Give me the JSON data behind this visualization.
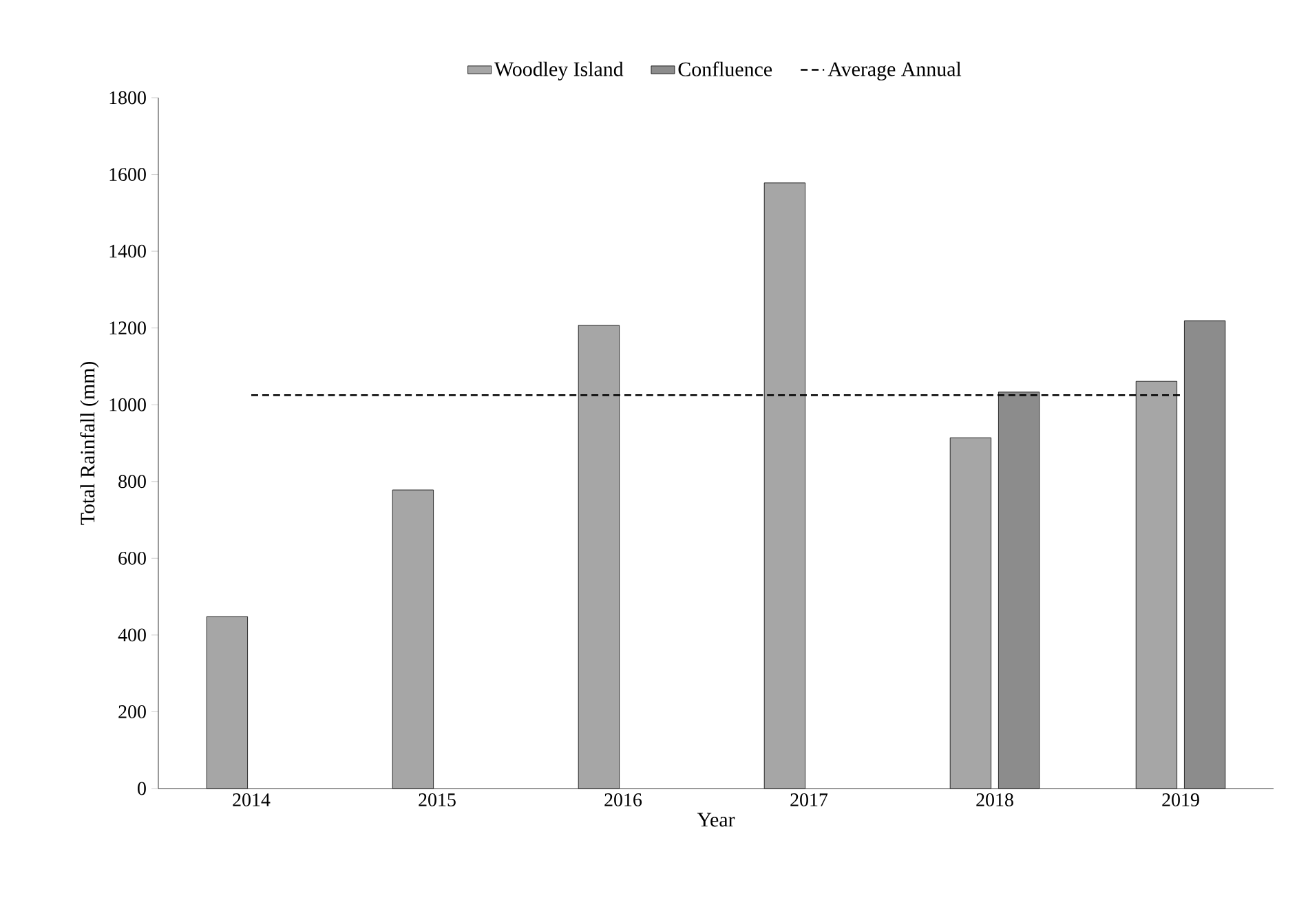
{
  "chart_data": {
    "type": "bar",
    "xlabel": "Year",
    "ylabel": "Total Rainfall (mm)",
    "categories": [
      "2014",
      "2015",
      "2016",
      "2017",
      "2018",
      "2019"
    ],
    "series": [
      {
        "name": "Woodley Island",
        "color": "#a6a6a6",
        "values": [
          448,
          778,
          1207,
          1578,
          914,
          1061
        ]
      },
      {
        "name": "Confluence",
        "color": "#8c8c8c",
        "values": [
          null,
          null,
          null,
          null,
          1033,
          1219
        ]
      },
      {
        "name": "Average Annual",
        "type": "line",
        "line_style": "dashed",
        "color": "#000000",
        "values": [
          1025,
          1025,
          1025,
          1025,
          1025,
          1025
        ]
      }
    ],
    "ylim": [
      0,
      1800
    ],
    "yticks": [
      0,
      200,
      400,
      600,
      800,
      1000,
      1200,
      1400,
      1600,
      1800
    ],
    "grid": false,
    "legend": "top"
  }
}
